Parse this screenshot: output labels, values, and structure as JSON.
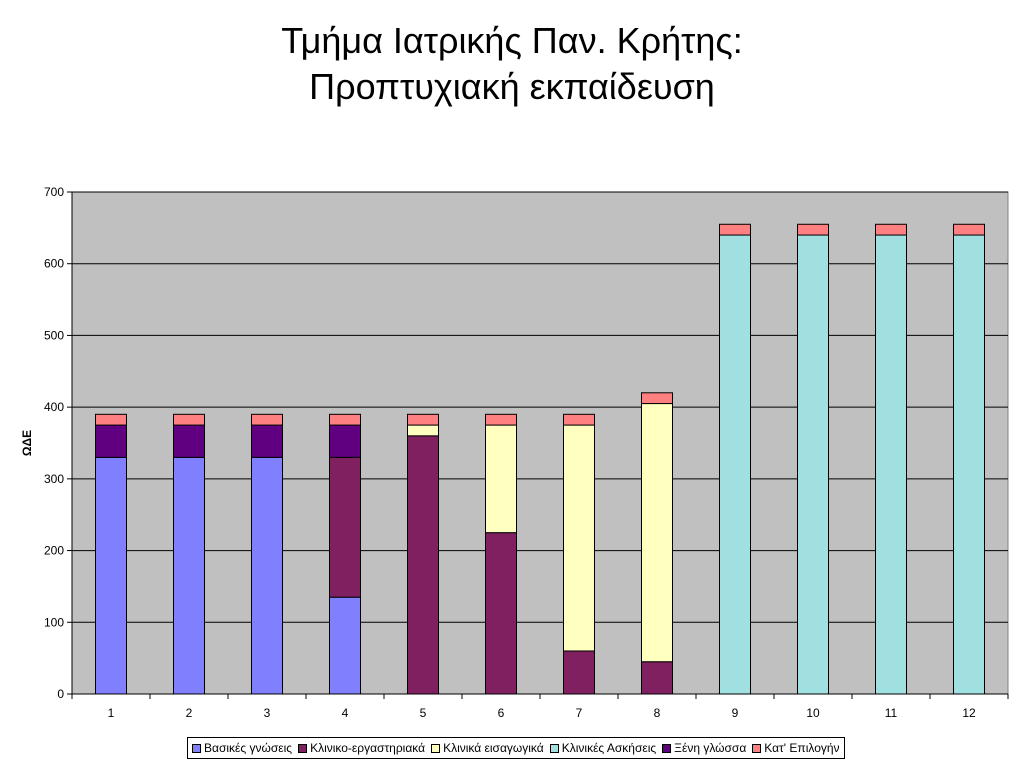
{
  "chart_data": {
    "type": "bar",
    "stacked": true,
    "title_lines": [
      "Τμήμα Ιατρικής Παν. Κρήτης:",
      "Προπτυχιακή εκπαίδευση"
    ],
    "xlabel": "",
    "ylabel": "ΩΔΕ",
    "ylim": [
      0,
      700
    ],
    "yticks": [
      0,
      100,
      200,
      300,
      400,
      500,
      600,
      700
    ],
    "grid": true,
    "legend_position": "bottom",
    "plot_background": "#c0c0c0",
    "categories": [
      "1",
      "2",
      "3",
      "4",
      "5",
      "6",
      "7",
      "8",
      "9",
      "10",
      "11",
      "12"
    ],
    "series": [
      {
        "name": "Βασικές γνώσεις",
        "color": "#8080ff",
        "values": [
          330,
          330,
          330,
          135,
          0,
          0,
          0,
          0,
          0,
          0,
          0,
          0
        ]
      },
      {
        "name": "Κλινικο-εργαστηριακά",
        "color": "#802060",
        "values": [
          0,
          0,
          0,
          195,
          360,
          225,
          60,
          45,
          0,
          0,
          0,
          0
        ]
      },
      {
        "name": "Κλινικά εισαγωγικά",
        "color": "#ffffc0",
        "values": [
          0,
          0,
          0,
          0,
          15,
          150,
          315,
          360,
          0,
          0,
          0,
          0
        ]
      },
      {
        "name": "Κλινικές Ασκήσεις",
        "color": "#a0e0e0",
        "values": [
          0,
          0,
          0,
          0,
          0,
          0,
          0,
          0,
          640,
          640,
          640,
          640
        ]
      },
      {
        "name": "Ξένη γλώσσα",
        "color": "#600080",
        "values": [
          45,
          45,
          45,
          45,
          0,
          0,
          0,
          0,
          0,
          0,
          0,
          0
        ]
      },
      {
        "name": "Κατ' Επιλογήν",
        "color": "#ff8080",
        "values": [
          15,
          15,
          15,
          15,
          15,
          15,
          15,
          15,
          15,
          15,
          15,
          15
        ]
      }
    ]
  }
}
